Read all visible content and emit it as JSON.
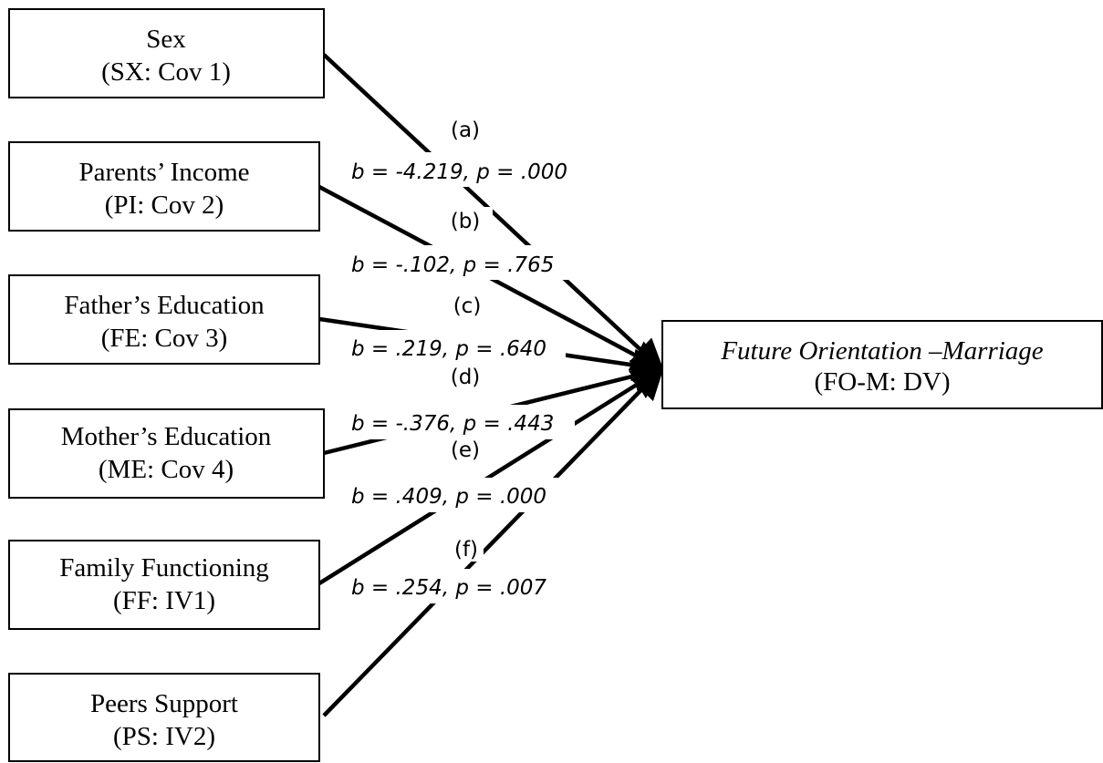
{
  "predictors": [
    {
      "name": "Sex",
      "code": "(SX: Cov 1)"
    },
    {
      "name": "Parents’ Income",
      "code": "(PI: Cov 2)"
    },
    {
      "name": "Father’s Education",
      "code": "(FE: Cov 3)"
    },
    {
      "name": "Mother’s Education",
      "code": "(ME: Cov 4)"
    },
    {
      "name": "Family Functioning",
      "code": "(FF: IV1)"
    },
    {
      "name": "Peers Support",
      "code": "(PS: IV2)"
    }
  ],
  "outcome": {
    "name": "Future Orientation –Marriage",
    "code": "(FO-M: DV)"
  },
  "paths": [
    {
      "letter": "(a)",
      "coefficient": "b = -4.219, p = .000"
    },
    {
      "letter": "(b)",
      "coefficient": "b = -.102, p = .765"
    },
    {
      "letter": "(c)",
      "coefficient": "b = .219, p = .640"
    },
    {
      "letter": "(d)",
      "coefficient": "b = -.376, p = .443"
    },
    {
      "letter": "(e)",
      "coefficient": "b = .409, p = .000"
    },
    {
      "letter": "(f)",
      "coefficient": "b = .254, p = .007"
    }
  ]
}
